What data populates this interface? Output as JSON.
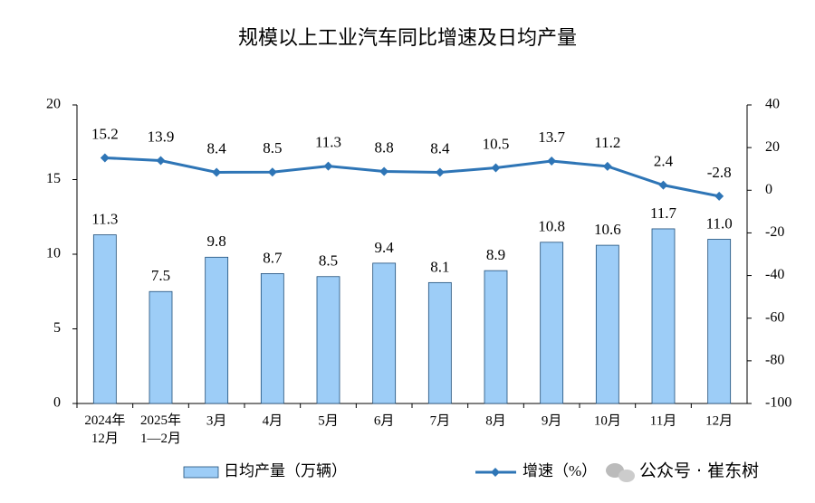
{
  "chart_data": {
    "type": "combo",
    "title": "规模以上工业汽车同比增速及日均产量",
    "categories": [
      "2024年\n12月",
      "2025年\n1—2月",
      "3月",
      "4月",
      "5月",
      "6月",
      "7月",
      "8月",
      "9月",
      "10月",
      "11月",
      "12月"
    ],
    "series": [
      {
        "name": "日均产量（万辆）",
        "type": "bar",
        "color": "#9dcdf7",
        "axis": "y",
        "values": [
          11.3,
          7.5,
          9.8,
          8.7,
          8.5,
          9.4,
          8.1,
          8.9,
          10.8,
          10.6,
          11.7,
          11.0
        ],
        "value_labels": [
          "11.3",
          "7.5",
          "9.8",
          "8.7",
          "8.5",
          "9.4",
          "8.1",
          "8.9",
          "10.8",
          "10.6",
          "11.7",
          "11.0"
        ]
      },
      {
        "name": "增速（%）",
        "type": "line",
        "color": "#2e75b6",
        "axis": "y2",
        "values": [
          15.2,
          13.9,
          8.4,
          8.5,
          11.3,
          8.8,
          8.4,
          10.5,
          13.7,
          11.2,
          2.4,
          -2.8
        ]
      }
    ],
    "ylim": [
      0,
      20
    ],
    "yticks": [
      0,
      5,
      10,
      15,
      20
    ],
    "y2lim": [
      -100,
      40
    ],
    "y2ticks": [
      -100,
      -80,
      -60,
      -40,
      -20,
      0,
      20,
      40
    ],
    "watermark": "公众号 · 崔东树"
  }
}
